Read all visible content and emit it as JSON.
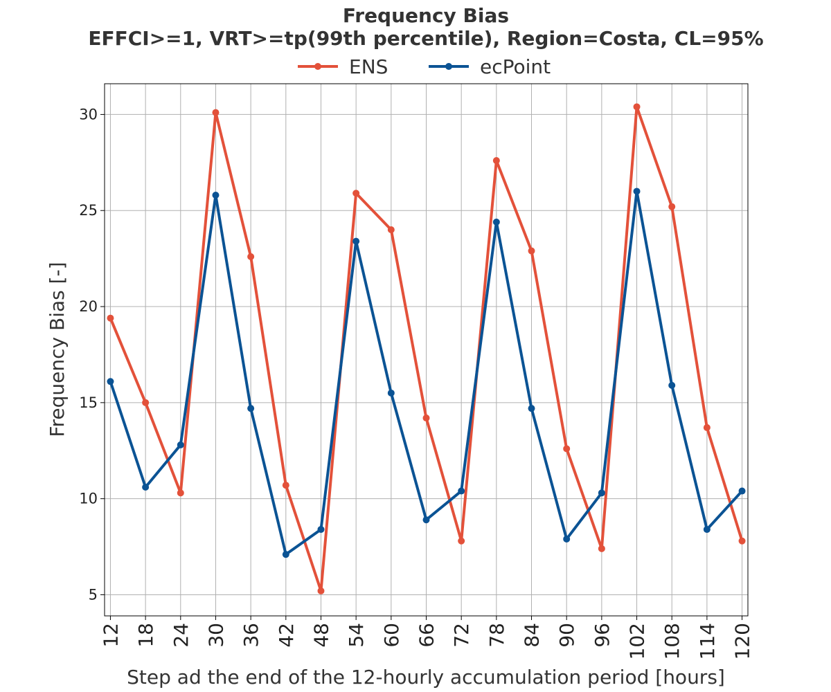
{
  "chart_data": {
    "type": "line",
    "title": "Frequency Bias",
    "subtitle": "EFFCI>=1, VRT>=tp(99th percentile), Region=Costa, CL=95%",
    "xlabel": "Step ad the end of the 12-hourly accumulation period [hours]",
    "ylabel": "Frequency Bias [-]",
    "x": [
      12,
      18,
      24,
      30,
      36,
      42,
      48,
      54,
      60,
      66,
      72,
      78,
      84,
      90,
      96,
      102,
      108,
      114,
      120
    ],
    "xlim": [
      11,
      121
    ],
    "ylim": [
      3.9,
      31.6
    ],
    "yticks": [
      5,
      10,
      15,
      20,
      25,
      30
    ],
    "grid": true,
    "legend_position": "top-center",
    "series": [
      {
        "name": "ENS",
        "color": "#e3513a",
        "values": [
          19.4,
          15.0,
          10.3,
          30.1,
          22.6,
          10.7,
          5.2,
          25.9,
          24.0,
          14.2,
          7.8,
          27.6,
          22.9,
          12.6,
          7.4,
          30.4,
          25.2,
          13.7,
          7.8
        ]
      },
      {
        "name": "ecPoint",
        "color": "#0b5394",
        "values": [
          16.1,
          10.6,
          12.8,
          25.8,
          14.7,
          7.1,
          8.4,
          23.4,
          15.5,
          8.9,
          10.4,
          24.4,
          14.7,
          7.9,
          10.3,
          26.0,
          15.9,
          8.4,
          10.4
        ]
      }
    ]
  }
}
